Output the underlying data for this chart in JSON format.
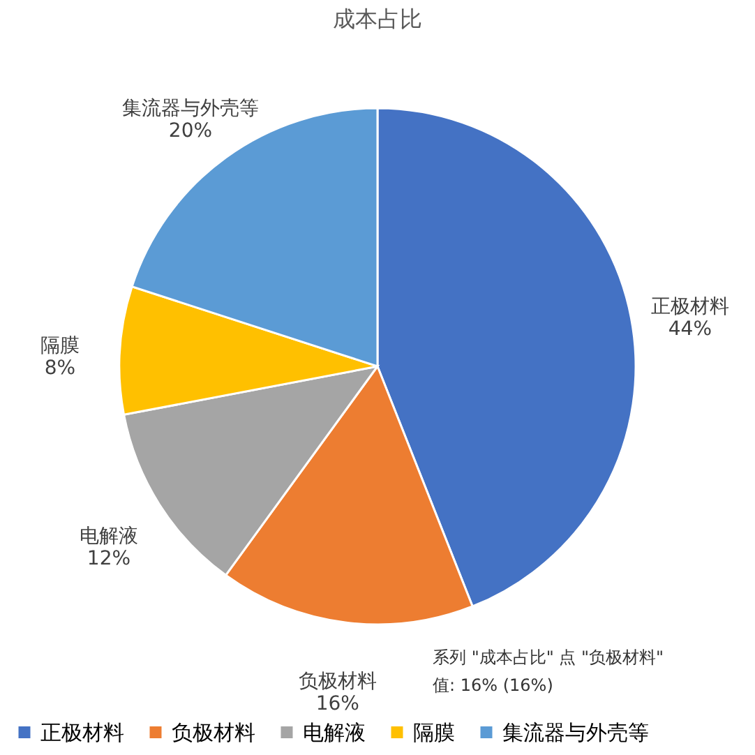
{
  "chart_data": {
    "type": "pie",
    "title": "成本占比",
    "categories": [
      "正极材料",
      "负极材料",
      "电解液",
      "隔膜",
      "集流器与外壳等"
    ],
    "values": [
      44,
      16,
      12,
      8,
      20
    ],
    "colors": [
      "#4472c4",
      "#ed7d31",
      "#a5a5a5",
      "#ffc000",
      "#5b9bd5"
    ],
    "value_labels": [
      "44%",
      "16%",
      "12%",
      "8%",
      "20%"
    ],
    "legend": "bottom",
    "annotations": [
      "系列 \"成本占比\" 点 \"负极材料\"\n值: 16% (16%)"
    ]
  }
}
